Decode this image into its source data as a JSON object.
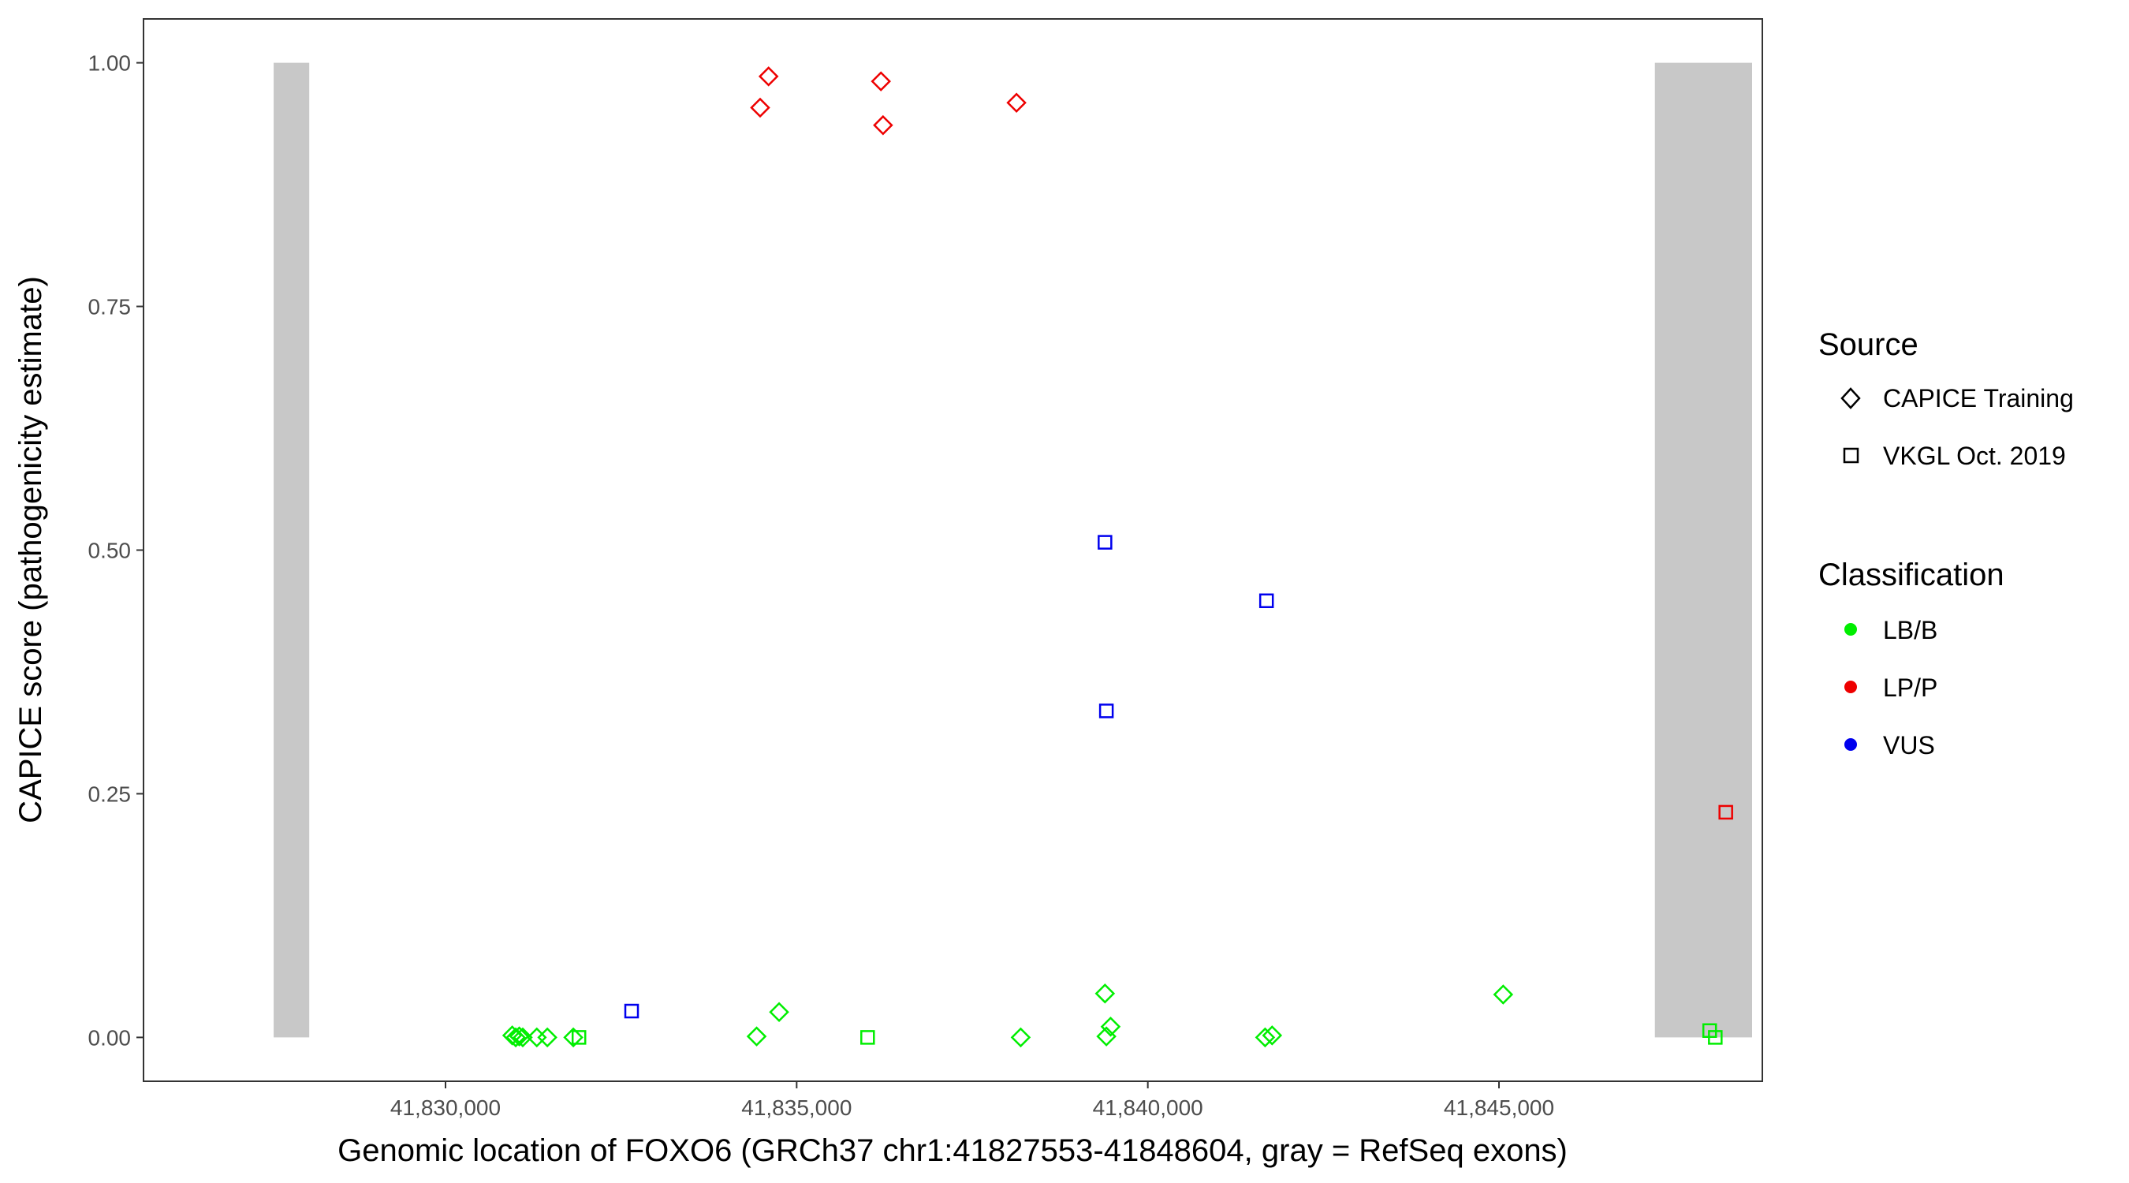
{
  "chart_data": {
    "type": "scatter",
    "xlabel": "Genomic location of FOXO6 (GRCh37 chr1:41827553-41848604, gray = RefSeq exons)",
    "ylabel": "CAPICE score (pathogenicity estimate)",
    "xlim": [
      41825700,
      41848750
    ],
    "ylim": [
      -0.045,
      1.045
    ],
    "x_ticks": [
      41830000,
      41835000,
      41840000,
      41845000
    ],
    "x_tick_labels": [
      "41,830,000",
      "41,835,000",
      "41,840,000",
      "41,845,000"
    ],
    "y_ticks": [
      0,
      0.25,
      0.5,
      0.75,
      1.0
    ],
    "y_tick_labels": [
      "0.00",
      "0.25",
      "0.50",
      "0.75",
      "1.00"
    ],
    "grid": false,
    "exons": [
      {
        "start": 41827553,
        "end": 41828060
      },
      {
        "start": 41847220,
        "end": 41848604
      }
    ],
    "exon_color": "#c8c8c8",
    "colors": {
      "LB/B": "#00ee00",
      "LP/P": "#ee0000",
      "VUS": "#0000ee"
    },
    "legend": {
      "position": "right",
      "source_title": "Source",
      "source_items": [
        {
          "label": "CAPICE Training",
          "shape": "diamond"
        },
        {
          "label": "VKGL Oct. 2019",
          "shape": "square"
        }
      ],
      "class_title": "Classification",
      "class_items": [
        {
          "label": "LB/B",
          "key": "LB/B"
        },
        {
          "label": "LP/P",
          "key": "LP/P"
        },
        {
          "label": "VUS",
          "key": "VUS"
        }
      ]
    },
    "points": [
      {
        "x": 41834600,
        "y": 0.986,
        "source": "CAPICE Training",
        "class": "LP/P"
      },
      {
        "x": 41834480,
        "y": 0.954,
        "source": "CAPICE Training",
        "class": "LP/P"
      },
      {
        "x": 41836200,
        "y": 0.981,
        "source": "CAPICE Training",
        "class": "LP/P"
      },
      {
        "x": 41836230,
        "y": 0.936,
        "source": "CAPICE Training",
        "class": "LP/P"
      },
      {
        "x": 41838130,
        "y": 0.959,
        "source": "CAPICE Training",
        "class": "LP/P"
      },
      {
        "x": 41848230,
        "y": 0.231,
        "source": "VKGL Oct. 2019",
        "class": "LP/P"
      },
      {
        "x": 41839390,
        "y": 0.508,
        "source": "VKGL Oct. 2019",
        "class": "VUS"
      },
      {
        "x": 41839410,
        "y": 0.335,
        "source": "VKGL Oct. 2019",
        "class": "VUS"
      },
      {
        "x": 41841690,
        "y": 0.448,
        "source": "VKGL Oct. 2019",
        "class": "VUS"
      },
      {
        "x": 41832650,
        "y": 0.027,
        "source": "VKGL Oct. 2019",
        "class": "VUS"
      },
      {
        "x": 41830950,
        "y": 0.002,
        "source": "CAPICE Training",
        "class": "LB/B"
      },
      {
        "x": 41831000,
        "y": 0.0,
        "source": "CAPICE Training",
        "class": "LB/B"
      },
      {
        "x": 41831050,
        "y": 0.001,
        "source": "CAPICE Training",
        "class": "LB/B"
      },
      {
        "x": 41831100,
        "y": 0.0,
        "source": "CAPICE Training",
        "class": "LB/B"
      },
      {
        "x": 41831300,
        "y": 0.0,
        "source": "CAPICE Training",
        "class": "LB/B"
      },
      {
        "x": 41831450,
        "y": 0.0,
        "source": "CAPICE Training",
        "class": "LB/B"
      },
      {
        "x": 41831820,
        "y": 0.0,
        "source": "CAPICE Training",
        "class": "LB/B"
      },
      {
        "x": 41831900,
        "y": 0.0,
        "source": "VKGL Oct. 2019",
        "class": "LB/B"
      },
      {
        "x": 41834430,
        "y": 0.001,
        "source": "CAPICE Training",
        "class": "LB/B"
      },
      {
        "x": 41834750,
        "y": 0.026,
        "source": "CAPICE Training",
        "class": "LB/B"
      },
      {
        "x": 41836010,
        "y": 0.0,
        "source": "VKGL Oct. 2019",
        "class": "LB/B"
      },
      {
        "x": 41838190,
        "y": 0.0,
        "source": "CAPICE Training",
        "class": "LB/B"
      },
      {
        "x": 41839390,
        "y": 0.045,
        "source": "CAPICE Training",
        "class": "LB/B"
      },
      {
        "x": 41839410,
        "y": 0.001,
        "source": "CAPICE Training",
        "class": "LB/B"
      },
      {
        "x": 41839470,
        "y": 0.011,
        "source": "CAPICE Training",
        "class": "LB/B"
      },
      {
        "x": 41841670,
        "y": 0.0,
        "source": "CAPICE Training",
        "class": "LB/B"
      },
      {
        "x": 41841770,
        "y": 0.002,
        "source": "CAPICE Training",
        "class": "LB/B"
      },
      {
        "x": 41845060,
        "y": 0.044,
        "source": "CAPICE Training",
        "class": "LB/B"
      },
      {
        "x": 41848000,
        "y": 0.007,
        "source": "VKGL Oct. 2019",
        "class": "LB/B"
      },
      {
        "x": 41848080,
        "y": 0.0,
        "source": "VKGL Oct. 2019",
        "class": "LB/B"
      }
    ]
  }
}
